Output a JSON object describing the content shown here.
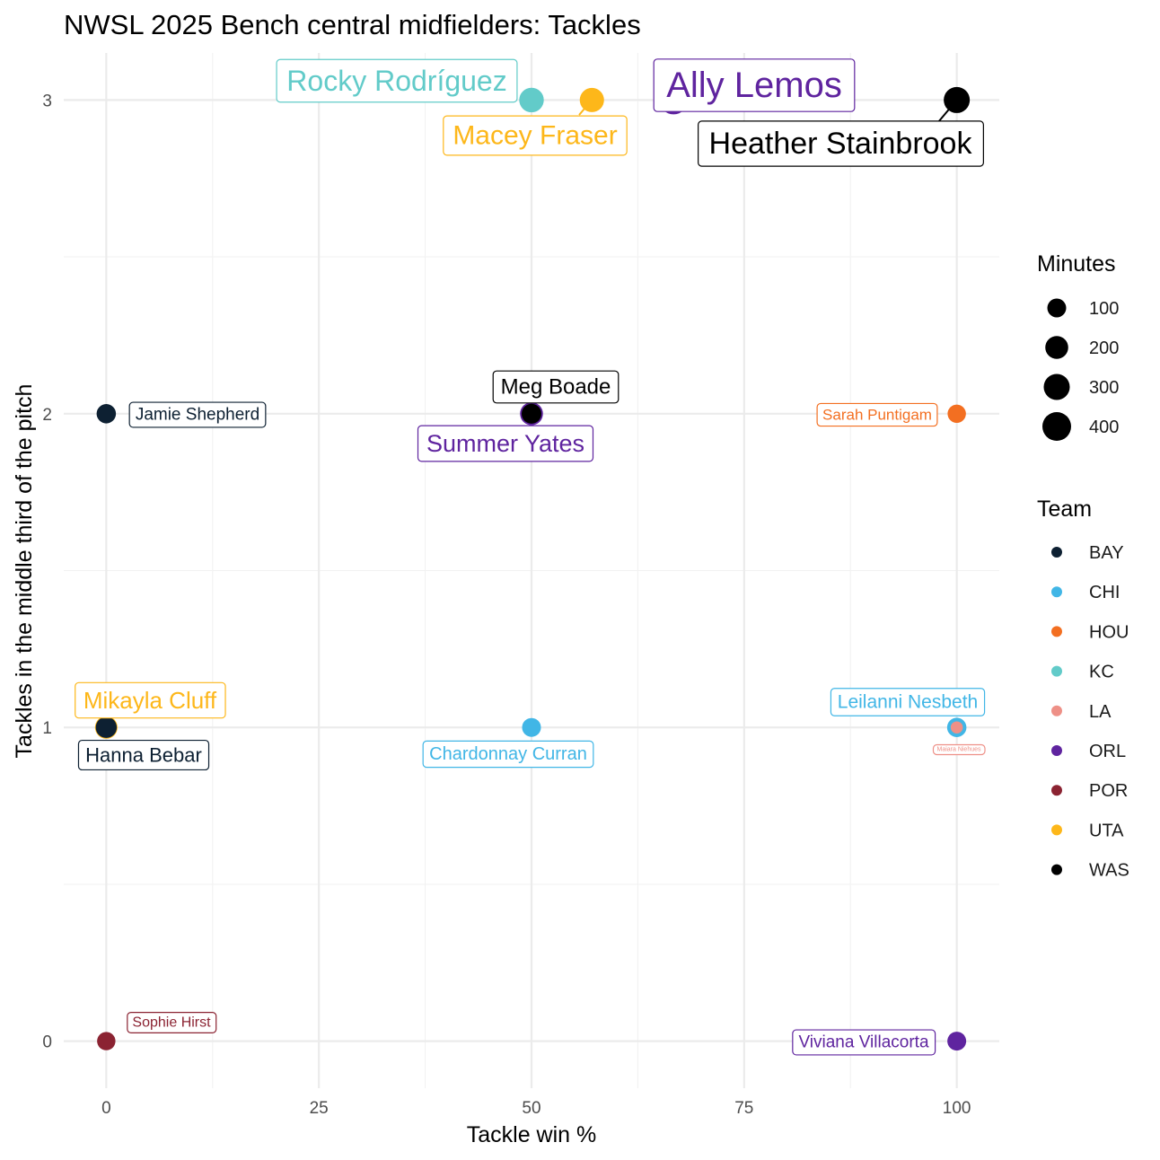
{
  "chart_data": {
    "type": "scatter",
    "title": "NWSL 2025 Bench central midfielders: Tackles",
    "xlabel": "Tackle win %",
    "ylabel": "Tackles in the middle third of the pitch",
    "xlim": [
      -5,
      105
    ],
    "ylim": [
      -0.15,
      3.15
    ],
    "x_ticks": [
      0,
      25,
      50,
      75,
      100
    ],
    "y_ticks": [
      0,
      1,
      2,
      3
    ],
    "x_tick_labels": [
      "0",
      "25",
      "50",
      "75",
      "100"
    ],
    "y_tick_labels": [
      "0",
      "1",
      "2",
      "3"
    ],
    "grid": true,
    "size_legend": {
      "title": "Minutes",
      "values": [
        100,
        200,
        300,
        400
      ],
      "labels": [
        "100",
        "200",
        "300",
        "400"
      ]
    },
    "color_legend": {
      "title": "Team",
      "teams": [
        {
          "name": "BAY",
          "color": "#0d2032"
        },
        {
          "name": "CHI",
          "color": "#41b6e6"
        },
        {
          "name": "HOU",
          "color": "#f36f21"
        },
        {
          "name": "KC",
          "color": "#62cbc9"
        },
        {
          "name": "LA",
          "color": "#ee9087"
        },
        {
          "name": "ORL",
          "color": "#5f249f"
        },
        {
          "name": "POR",
          "color": "#8b2332"
        },
        {
          "name": "UTA",
          "color": "#fdb71a"
        },
        {
          "name": "WAS",
          "color": "#000000"
        }
      ]
    },
    "points": [
      {
        "player": "Ally Lemos",
        "team": "ORL",
        "x": 66.7,
        "y": 3,
        "minutes": 400
      },
      {
        "player": "Heather Stainbrook",
        "team": "WAS",
        "x": 100,
        "y": 3,
        "minutes": 300
      },
      {
        "player": "Rocky Rodríguez",
        "team": "KC",
        "x": 50,
        "y": 3,
        "minutes": 250
      },
      {
        "player": "Macey Fraser",
        "team": "UTA",
        "x": 57.1,
        "y": 3,
        "minutes": 240
      },
      {
        "player": "Meg Boade",
        "team": "WAS",
        "x": 50,
        "y": 2,
        "minutes": 120
      },
      {
        "player": "Summer Yates",
        "team": "ORL",
        "x": 50,
        "y": 2,
        "minutes": 200
      },
      {
        "player": "Jamie Shepherd",
        "team": "BAY",
        "x": 0,
        "y": 2,
        "minutes": 110
      },
      {
        "player": "Sarah Puntigam",
        "team": "HOU",
        "x": 100,
        "y": 2,
        "minutes": 90
      },
      {
        "player": "Mikayla Cluff",
        "team": "UTA",
        "x": 0,
        "y": 1,
        "minutes": 190
      },
      {
        "player": "Hanna Bebar",
        "team": "BAY",
        "x": 0,
        "y": 1,
        "minutes": 150
      },
      {
        "player": "Chardonnay Curran",
        "team": "CHI",
        "x": 50,
        "y": 1,
        "minutes": 100
      },
      {
        "player": "Leilanni Nesbeth",
        "team": "CHI",
        "x": 100,
        "y": 1,
        "minutes": 110
      },
      {
        "player": "Maiara Niehues",
        "team": "LA",
        "x": 100,
        "y": 1,
        "minutes": 10
      },
      {
        "player": "Sophie Hirst",
        "team": "POR",
        "x": 0,
        "y": 0,
        "minutes": 90
      },
      {
        "player": "Viviana Villacorta",
        "team": "ORL",
        "x": 100,
        "y": 0,
        "minutes": 100
      }
    ]
  }
}
